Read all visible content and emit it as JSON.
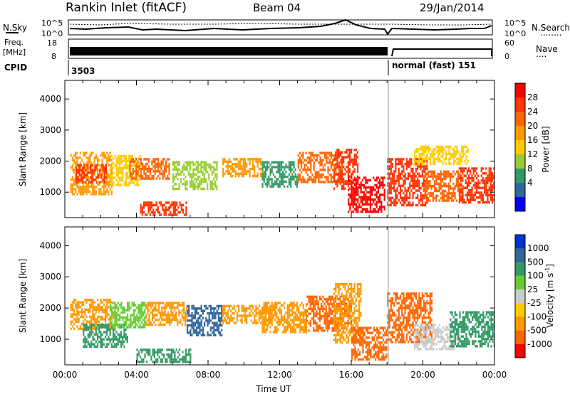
{
  "header": {
    "station": "Rankin Inlet (fitACF)",
    "beam": "Beam 04",
    "date": "29/Jan/2014"
  },
  "noise_panel": {
    "left_label": "N.Sky",
    "right_label": "N.Search",
    "right_legend_line": "........",
    "left_ticks": [
      "10^5",
      "10^0"
    ],
    "right_ticks": [
      "10^5",
      "10^0"
    ]
  },
  "freq_panel": {
    "left_label_1": "Freq.",
    "left_label_2": "[MHz]",
    "left_ticks": [
      "18",
      "8"
    ],
    "right_label": "Nave",
    "right_legend_line": "....",
    "right_ticks": [
      "60",
      "0"
    ]
  },
  "cpid_panel": {
    "label": "CPID",
    "segments": [
      {
        "text": "3503",
        "start_hour": 0.0,
        "end_hour": 18.0
      },
      {
        "text": "normal (fast) 151",
        "start_hour": 18.0,
        "end_hour": 24.0
      }
    ]
  },
  "chart_data": [
    {
      "type": "heatmap",
      "name": "power",
      "ylabel": "Slant Range [km]",
      "xlabel": "",
      "xlim": [
        0,
        24
      ],
      "ylim": [
        180,
        4600
      ],
      "yticks": [
        "1000",
        "2000",
        "3000",
        "4000"
      ],
      "colorbar": {
        "label": "Power [dB]",
        "ticks": [
          "28",
          "24",
          "20",
          "16",
          "12",
          "8",
          "4"
        ],
        "colors": [
          "#ff0000",
          "#ff3300",
          "#ff6600",
          "#ff9900",
          "#ffcc00",
          "#99cc33",
          "#339966",
          "#336699",
          "#0000ff"
        ]
      },
      "regions": [
        {
          "t0": 0.3,
          "t1": 2.6,
          "r0": 900,
          "r1": 2300,
          "color": "#ff9900"
        },
        {
          "t0": 0.6,
          "t1": 2.3,
          "r0": 1300,
          "r1": 1900,
          "color": "#ff3300"
        },
        {
          "t0": 2.5,
          "t1": 4.2,
          "r0": 1200,
          "r1": 2200,
          "color": "#ffcc00"
        },
        {
          "t0": 3.6,
          "t1": 5.8,
          "r0": 1400,
          "r1": 2100,
          "color": "#ff6600"
        },
        {
          "t0": 4.2,
          "t1": 6.8,
          "r0": 250,
          "r1": 700,
          "color": "#ff3300"
        },
        {
          "t0": 6.0,
          "t1": 8.5,
          "r0": 1100,
          "r1": 2000,
          "color": "#99cc33"
        },
        {
          "t0": 8.8,
          "t1": 11.0,
          "r0": 1500,
          "r1": 2100,
          "color": "#ff9900"
        },
        {
          "t0": 11.0,
          "t1": 13.0,
          "r0": 1200,
          "r1": 2000,
          "color": "#339966"
        },
        {
          "t0": 13.0,
          "t1": 15.5,
          "r0": 1300,
          "r1": 2300,
          "color": "#ff6600"
        },
        {
          "t0": 15.0,
          "t1": 16.4,
          "r0": 1100,
          "r1": 2400,
          "color": "#ff3300"
        },
        {
          "t0": 15.8,
          "t1": 17.9,
          "r0": 350,
          "r1": 1500,
          "color": "#ff0000"
        },
        {
          "t0": 18.0,
          "t1": 20.2,
          "r0": 600,
          "r1": 2100,
          "color": "#ff3300"
        },
        {
          "t0": 20.0,
          "t1": 22.2,
          "r0": 700,
          "r1": 1700,
          "color": "#ff6600"
        },
        {
          "t0": 22.0,
          "t1": 24.0,
          "r0": 700,
          "r1": 1800,
          "color": "#ff3300"
        },
        {
          "t0": 19.5,
          "t1": 22.5,
          "r0": 1900,
          "r1": 2500,
          "color": "#ffcc00"
        }
      ]
    },
    {
      "type": "heatmap",
      "name": "velocity",
      "ylabel": "Slant Range [km]",
      "xlabel": "Time UT",
      "xlim": [
        0,
        24
      ],
      "ylim": [
        180,
        4600
      ],
      "xticks": [
        "00:00",
        "04:00",
        "08:00",
        "12:00",
        "16:00",
        "20:00",
        "00:00"
      ],
      "yticks": [
        "1000",
        "2000",
        "3000",
        "4000"
      ],
      "colorbar": {
        "label_main": "Velocity",
        "label_unit": "[m s",
        "label_exp": "-1",
        "label_close": "]",
        "ticks": [
          "1000",
          "500",
          "100",
          "25",
          "-25",
          "-100",
          "-500",
          "-1000"
        ],
        "colors": [
          "#0033cc",
          "#336699",
          "#339966",
          "#66cc33",
          "#cccccc",
          "#ffcc00",
          "#ff9900",
          "#ff6600",
          "#ff0000"
        ]
      },
      "regions": [
        {
          "t0": 0.3,
          "t1": 2.6,
          "r0": 1300,
          "r1": 2300,
          "color": "#ff9900"
        },
        {
          "t0": 1.0,
          "t1": 3.5,
          "r0": 800,
          "r1": 1500,
          "color": "#339966"
        },
        {
          "t0": 2.5,
          "t1": 4.5,
          "r0": 1400,
          "r1": 2200,
          "color": "#66cc33"
        },
        {
          "t0": 4.5,
          "t1": 6.8,
          "r0": 1500,
          "r1": 2200,
          "color": "#ff9900"
        },
        {
          "t0": 4.0,
          "t1": 7.0,
          "r0": 250,
          "r1": 700,
          "color": "#339966"
        },
        {
          "t0": 6.8,
          "t1": 8.8,
          "r0": 1100,
          "r1": 2100,
          "color": "#336699"
        },
        {
          "t0": 8.8,
          "t1": 11.5,
          "r0": 1500,
          "r1": 2100,
          "color": "#ff9900"
        },
        {
          "t0": 11.0,
          "t1": 13.5,
          "r0": 1200,
          "r1": 2200,
          "color": "#ff9900"
        },
        {
          "t0": 13.5,
          "t1": 16.0,
          "r0": 1300,
          "r1": 2400,
          "color": "#ff6600"
        },
        {
          "t0": 15.0,
          "t1": 16.5,
          "r0": 900,
          "r1": 2800,
          "color": "#ff9900"
        },
        {
          "t0": 16.0,
          "t1": 18.0,
          "r0": 350,
          "r1": 1400,
          "color": "#ff6600"
        },
        {
          "t0": 18.0,
          "t1": 20.5,
          "r0": 900,
          "r1": 2500,
          "color": "#ff6600"
        },
        {
          "t0": 19.5,
          "t1": 22.0,
          "r0": 700,
          "r1": 1500,
          "color": "#cccccc"
        },
        {
          "t0": 21.5,
          "t1": 24.0,
          "r0": 800,
          "r1": 1900,
          "color": "#339966"
        }
      ]
    }
  ]
}
